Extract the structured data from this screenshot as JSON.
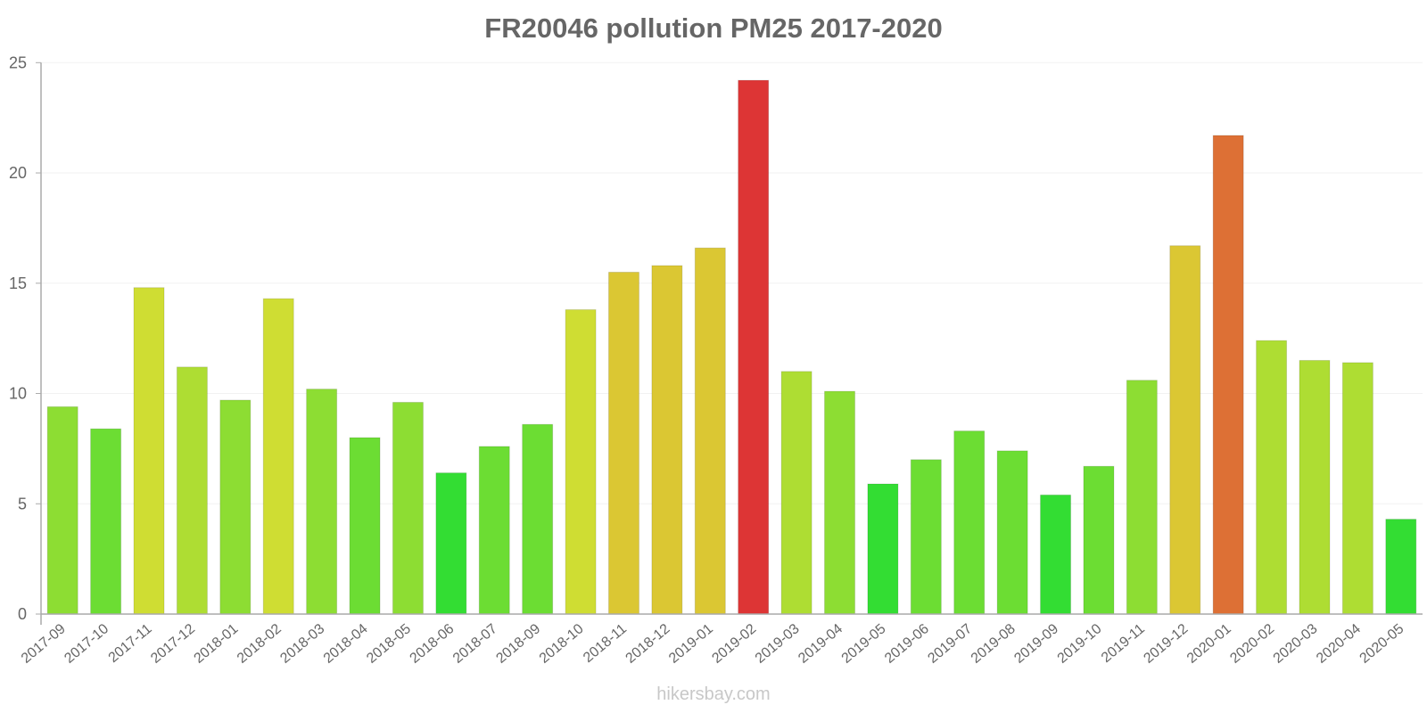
{
  "title": "FR20046 pollution PM25 2017-2020",
  "watermark": "hikersbay.com",
  "chart_data": {
    "type": "bar",
    "title": "FR20046 pollution PM25 2017-2020",
    "xlabel": "",
    "ylabel": "",
    "ylim": [
      0,
      25
    ],
    "yticks": [
      0,
      5,
      10,
      15,
      20,
      25
    ],
    "grid": true,
    "legend": null,
    "categories": [
      "2017-09",
      "2017-10",
      "2017-11",
      "2017-12",
      "2018-01",
      "2018-02",
      "2018-03",
      "2018-04",
      "2018-05",
      "2018-06",
      "2018-07",
      "2018-09",
      "2018-10",
      "2018-11",
      "2018-12",
      "2019-01",
      "2019-02",
      "2019-03",
      "2019-04",
      "2019-05",
      "2019-06",
      "2019-07",
      "2019-08",
      "2019-09",
      "2019-10",
      "2019-11",
      "2019-12",
      "2020-01",
      "2020-02",
      "2020-03",
      "2020-04",
      "2020-05"
    ],
    "values": [
      9.4,
      8.4,
      14.8,
      11.2,
      9.7,
      14.3,
      10.2,
      8.0,
      9.6,
      6.4,
      7.6,
      8.6,
      13.8,
      15.5,
      15.8,
      16.6,
      24.2,
      11.0,
      10.1,
      5.9,
      7.0,
      8.3,
      7.4,
      5.4,
      6.7,
      10.6,
      16.7,
      21.7,
      12.4,
      11.5,
      11.4,
      4.3
    ],
    "colors": [
      "#8ddd33",
      "#6cdd33",
      "#cfdd33",
      "#aedd33",
      "#8ddd33",
      "#cfdd33",
      "#8ddd33",
      "#6cdd33",
      "#8ddd33",
      "#33dd33",
      "#6cdd33",
      "#6cdd33",
      "#cfdd33",
      "#dbc733",
      "#dbc733",
      "#dbc733",
      "#dd3535",
      "#aedd33",
      "#8ddd33",
      "#33dd33",
      "#6cdd33",
      "#6cdd33",
      "#6cdd33",
      "#33dd33",
      "#6cdd33",
      "#8ddd33",
      "#dbc733",
      "#dd7035",
      "#aedd33",
      "#aedd33",
      "#aedd33",
      "#33dd33"
    ]
  }
}
